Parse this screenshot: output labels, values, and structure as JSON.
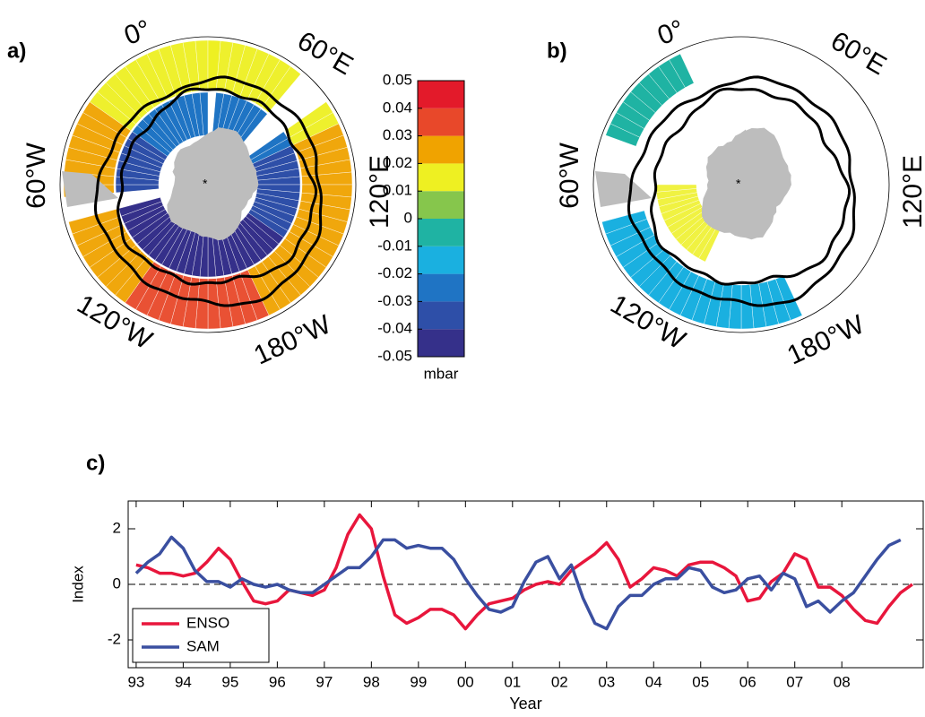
{
  "chart_data": [
    {
      "type": "polar-map",
      "panel": "a)",
      "lon_labels": [
        "0°",
        "60°E",
        "120°E",
        "180°W",
        "120°W",
        "60°W"
      ]
    },
    {
      "type": "polar-map",
      "panel": "b)",
      "lon_labels": [
        "0°",
        "60°E",
        "120°E",
        "180°W",
        "120°W",
        "60°W"
      ]
    },
    {
      "type": "colorbar",
      "label": "mbar",
      "clim": [
        -0.05,
        0.05
      ],
      "ticks": [
        -0.05,
        -0.04,
        -0.03,
        -0.02,
        -0.01,
        0,
        0.01,
        0.02,
        0.03,
        0.04,
        0.05
      ],
      "colors": [
        "#35308a",
        "#2e4fa8",
        "#1f74c4",
        "#1ab0e0",
        "#1fb3a3",
        "#86c64c",
        "#eef022",
        "#f0a300",
        "#e8482a",
        "#e31a2a"
      ]
    },
    {
      "type": "line",
      "panel": "c)",
      "xlabel": "Year",
      "ylabel": "Index",
      "xlim": [
        1992.83,
        2009.73
      ],
      "ylim": [
        -3,
        3
      ],
      "xticks": [
        {
          "value": 1993,
          "label": "93"
        },
        {
          "value": 1994,
          "label": "94"
        },
        {
          "value": 1995,
          "label": "95"
        },
        {
          "value": 1996,
          "label": "96"
        },
        {
          "value": 1997,
          "label": "97"
        },
        {
          "value": 1998,
          "label": "98"
        },
        {
          "value": 1999,
          "label": "99"
        },
        {
          "value": 2000,
          "label": "00"
        },
        {
          "value": 2001,
          "label": "01"
        },
        {
          "value": 2002,
          "label": "02"
        },
        {
          "value": 2003,
          "label": "03"
        },
        {
          "value": 2004,
          "label": "04"
        },
        {
          "value": 2005,
          "label": "05"
        },
        {
          "value": 2006,
          "label": "06"
        },
        {
          "value": 2007,
          "label": "07"
        },
        {
          "value": 2008,
          "label": "08"
        }
      ],
      "yticks": [
        -2,
        0,
        2
      ],
      "reference_line": 0,
      "legend": "lower left",
      "x": [
        1993,
        1993.25,
        1993.5,
        1993.75,
        1994,
        1994.25,
        1994.5,
        1994.75,
        1995,
        1995.25,
        1995.5,
        1995.75,
        1996,
        1996.25,
        1996.5,
        1996.75,
        1997,
        1997.25,
        1997.5,
        1997.75,
        1998,
        1998.25,
        1998.5,
        1998.75,
        1999,
        1999.25,
        1999.5,
        1999.75,
        2000,
        2000.25,
        2000.5,
        2000.75,
        2001,
        2001.25,
        2001.5,
        2001.75,
        2002,
        2002.25,
        2002.5,
        2002.75,
        2003,
        2003.25,
        2003.5,
        2003.75,
        2004,
        2004.25,
        2004.5,
        2004.75,
        2005,
        2005.25,
        2005.5,
        2005.75,
        2006,
        2006.25,
        2006.5,
        2006.75,
        2007,
        2007.25,
        2007.5,
        2007.75,
        2008,
        2008.25,
        2008.5,
        2008.75,
        2009,
        2009.25,
        2009.5
      ],
      "series": [
        {
          "name": "ENSO",
          "color": "#e8163c",
          "values": [
            0.7,
            0.6,
            0.4,
            0.4,
            0.3,
            0.4,
            0.8,
            1.3,
            0.9,
            0.1,
            -0.6,
            -0.7,
            -0.6,
            -0.2,
            -0.3,
            -0.4,
            -0.2,
            0.6,
            1.8,
            2.5,
            2.0,
            0.3,
            -1.1,
            -1.4,
            -1.2,
            -0.9,
            -0.9,
            -1.1,
            -1.6,
            -1.1,
            -0.7,
            -0.6,
            -0.5,
            -0.2,
            0.0,
            0.1,
            0.0,
            0.5,
            0.8,
            1.1,
            1.5,
            0.9,
            -0.1,
            0.2,
            0.6,
            0.5,
            0.3,
            0.7,
            0.8,
            0.8,
            0.6,
            0.3,
            -0.6,
            -0.5,
            0.1,
            0.4,
            1.1,
            0.9,
            -0.1,
            -0.1,
            -0.4,
            -0.9,
            -1.3,
            -1.4,
            -0.8,
            -0.3,
            0.0
          ]
        },
        {
          "name": "SAM",
          "color": "#3a4fa0",
          "values": [
            0.4,
            0.8,
            1.1,
            1.7,
            1.3,
            0.5,
            0.1,
            0.1,
            -0.1,
            0.2,
            0.0,
            -0.1,
            0.0,
            -0.2,
            -0.3,
            -0.3,
            0.0,
            0.3,
            0.6,
            0.6,
            1.0,
            1.6,
            1.6,
            1.3,
            1.4,
            1.3,
            1.3,
            0.9,
            0.2,
            -0.4,
            -0.9,
            -1.0,
            -0.8,
            0.1,
            0.8,
            1.0,
            0.2,
            0.7,
            -0.5,
            -1.4,
            -1.6,
            -0.8,
            -0.4,
            -0.4,
            0.0,
            0.2,
            0.2,
            0.6,
            0.5,
            -0.1,
            -0.3,
            -0.2,
            0.2,
            0.3,
            -0.2,
            0.4,
            0.2,
            -0.8,
            -0.6,
            -1.0,
            -0.6,
            -0.3,
            0.3,
            0.9,
            1.4,
            1.6,
            null
          ]
        }
      ]
    }
  ]
}
